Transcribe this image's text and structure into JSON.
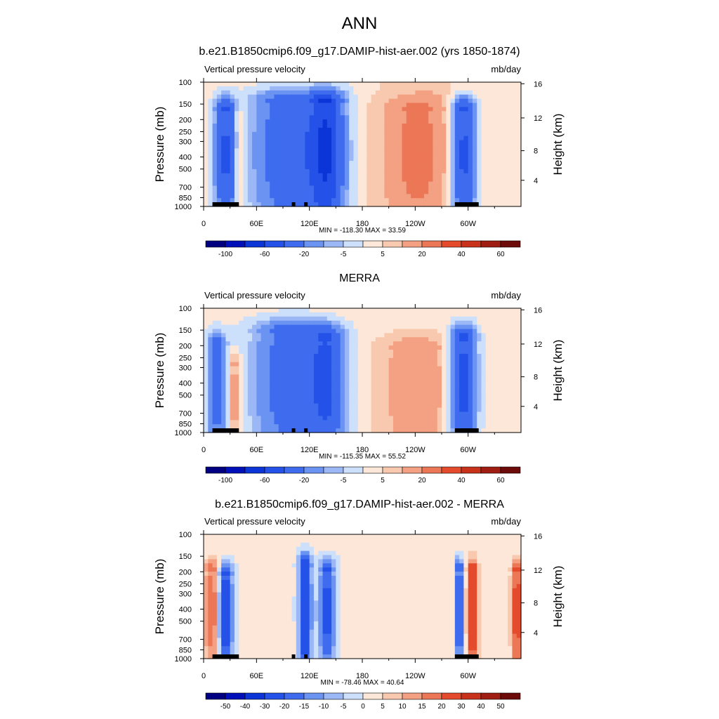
{
  "figure": {
    "title": "ANN"
  },
  "chart_data": [
    {
      "type": "heatmap",
      "title": "b.e21.B1850cmip6.f09_g17.DAMIP-hist-aer.002 (yrs 1850-1874)",
      "left_label": "Vertical pressure velocity",
      "right_label": "mb/day",
      "ylabel": "Pressure (mb)",
      "y2label": "Height (km)",
      "y_ticks": [
        "100",
        "150",
        "200",
        "250",
        "300",
        "400",
        "500",
        "700",
        "850",
        "1000"
      ],
      "y2_ticks": [
        "16",
        "12",
        "8",
        "4"
      ],
      "x_ticks": [
        "0",
        "60E",
        "120E",
        "180",
        "120W",
        "60W"
      ],
      "xlim": [
        0,
        360
      ],
      "ylim": [
        1000,
        100
      ],
      "stats": "MIN = -118.30  MAX =  33.59",
      "colorbar_labels": [
        "-100",
        "-60",
        "-20",
        "-5",
        "5",
        "20",
        "40",
        "60"
      ],
      "colorbar_levels": [
        -120,
        -100,
        -80,
        -60,
        -40,
        -20,
        -10,
        -5,
        0,
        5,
        10,
        20,
        30,
        40,
        50,
        60,
        70
      ],
      "features": [
        {
          "lon": 25,
          "p_top": 170,
          "width": 16,
          "value": -45
        },
        {
          "lon": 40,
          "p_top": 200,
          "width": 8,
          "value": 12
        },
        {
          "lon": 100,
          "p_top": 150,
          "width": 55,
          "value": -40
        },
        {
          "lon": 140,
          "p_top": 150,
          "width": 25,
          "value": -55
        },
        {
          "lon": 240,
          "p_top": 170,
          "width": 45,
          "value": 18
        },
        {
          "lon": 295,
          "p_top": 170,
          "width": 18,
          "value": -50
        },
        {
          "lon": 270,
          "p_top": 100,
          "width": 80,
          "value": 5
        }
      ]
    },
    {
      "type": "heatmap",
      "title": "MERRA",
      "left_label": "Vertical pressure velocity",
      "right_label": "mb/day",
      "ylabel": "Pressure (mb)",
      "y2label": "Height (km)",
      "y_ticks": [
        "100",
        "150",
        "200",
        "250",
        "300",
        "400",
        "500",
        "700",
        "850",
        "1000"
      ],
      "y2_ticks": [
        "16",
        "12",
        "8",
        "4"
      ],
      "x_ticks": [
        "0",
        "60E",
        "120E",
        "180",
        "120W",
        "60W"
      ],
      "xlim": [
        0,
        360
      ],
      "ylim": [
        1000,
        100
      ],
      "stats": "MIN = -115.35  MAX =  55.52",
      "colorbar_labels": [
        "-100",
        "-60",
        "-20",
        "-5",
        "5",
        "20",
        "40",
        "60"
      ],
      "colorbar_levels": [
        -120,
        -100,
        -80,
        -60,
        -40,
        -20,
        -10,
        -5,
        0,
        5,
        10,
        20,
        30,
        40,
        50,
        60,
        70
      ],
      "features": [
        {
          "lon": 15,
          "p_top": 200,
          "width": 14,
          "value": -30
        },
        {
          "lon": 35,
          "p_top": 300,
          "width": 10,
          "value": 15
        },
        {
          "lon": 100,
          "p_top": 160,
          "width": 55,
          "value": -35
        },
        {
          "lon": 140,
          "p_top": 180,
          "width": 25,
          "value": -40
        },
        {
          "lon": 240,
          "p_top": 220,
          "width": 45,
          "value": 15
        },
        {
          "lon": 295,
          "p_top": 180,
          "width": 18,
          "value": -50
        }
      ]
    },
    {
      "type": "heatmap",
      "title": "b.e21.B1850cmip6.f09_g17.DAMIP-hist-aer.002 - MERRA",
      "left_label": "Vertical pressure velocity",
      "right_label": "mb/day",
      "ylabel": "Pressure (mb)",
      "y2label": "Height (km)",
      "y_ticks": [
        "100",
        "150",
        "200",
        "250",
        "300",
        "400",
        "500",
        "700",
        "850",
        "1000"
      ],
      "y2_ticks": [
        "16",
        "12",
        "8",
        "4"
      ],
      "x_ticks": [
        "0",
        "60E",
        "120E",
        "180",
        "120W",
        "60W"
      ],
      "xlim": [
        0,
        360
      ],
      "ylim": [
        1000,
        100
      ],
      "stats": "MIN = -78.46  MAX =  40.64",
      "colorbar_labels": [
        "-50",
        "-40",
        "-30",
        "-20",
        "-15",
        "-10",
        "-5",
        "0",
        "5",
        "10",
        "15",
        "20",
        "30",
        "40",
        "50"
      ],
      "colorbar_levels": [
        -60,
        -50,
        -40,
        -30,
        -20,
        -15,
        -10,
        -5,
        0,
        5,
        10,
        15,
        20,
        30,
        40,
        50,
        60
      ],
      "features": [
        {
          "lon": 10,
          "p_top": 200,
          "width": 10,
          "value": 20
        },
        {
          "lon": 25,
          "p_top": 220,
          "width": 12,
          "value": -30
        },
        {
          "lon": 115,
          "p_top": 180,
          "width": 10,
          "value": -35
        },
        {
          "lon": 140,
          "p_top": 200,
          "width": 14,
          "value": -25
        },
        {
          "lon": 290,
          "p_top": 200,
          "width": 6,
          "value": -30
        },
        {
          "lon": 305,
          "p_top": 200,
          "width": 8,
          "value": 30
        },
        {
          "lon": 355,
          "p_top": 200,
          "width": 8,
          "value": 25
        }
      ]
    }
  ],
  "colors": {
    "negative": [
      "#000080",
      "#0010b8",
      "#0b35d6",
      "#2452e8",
      "#3f6cee",
      "#6a93f2",
      "#9bb7f6",
      "#cde0fb"
    ],
    "positive": [
      "#fde7d8",
      "#f8c9ae",
      "#f3a182",
      "#ec7757",
      "#e44a2c",
      "#c8321b",
      "#a01d12",
      "#6d0a0a"
    ],
    "terrain": "#000000"
  }
}
